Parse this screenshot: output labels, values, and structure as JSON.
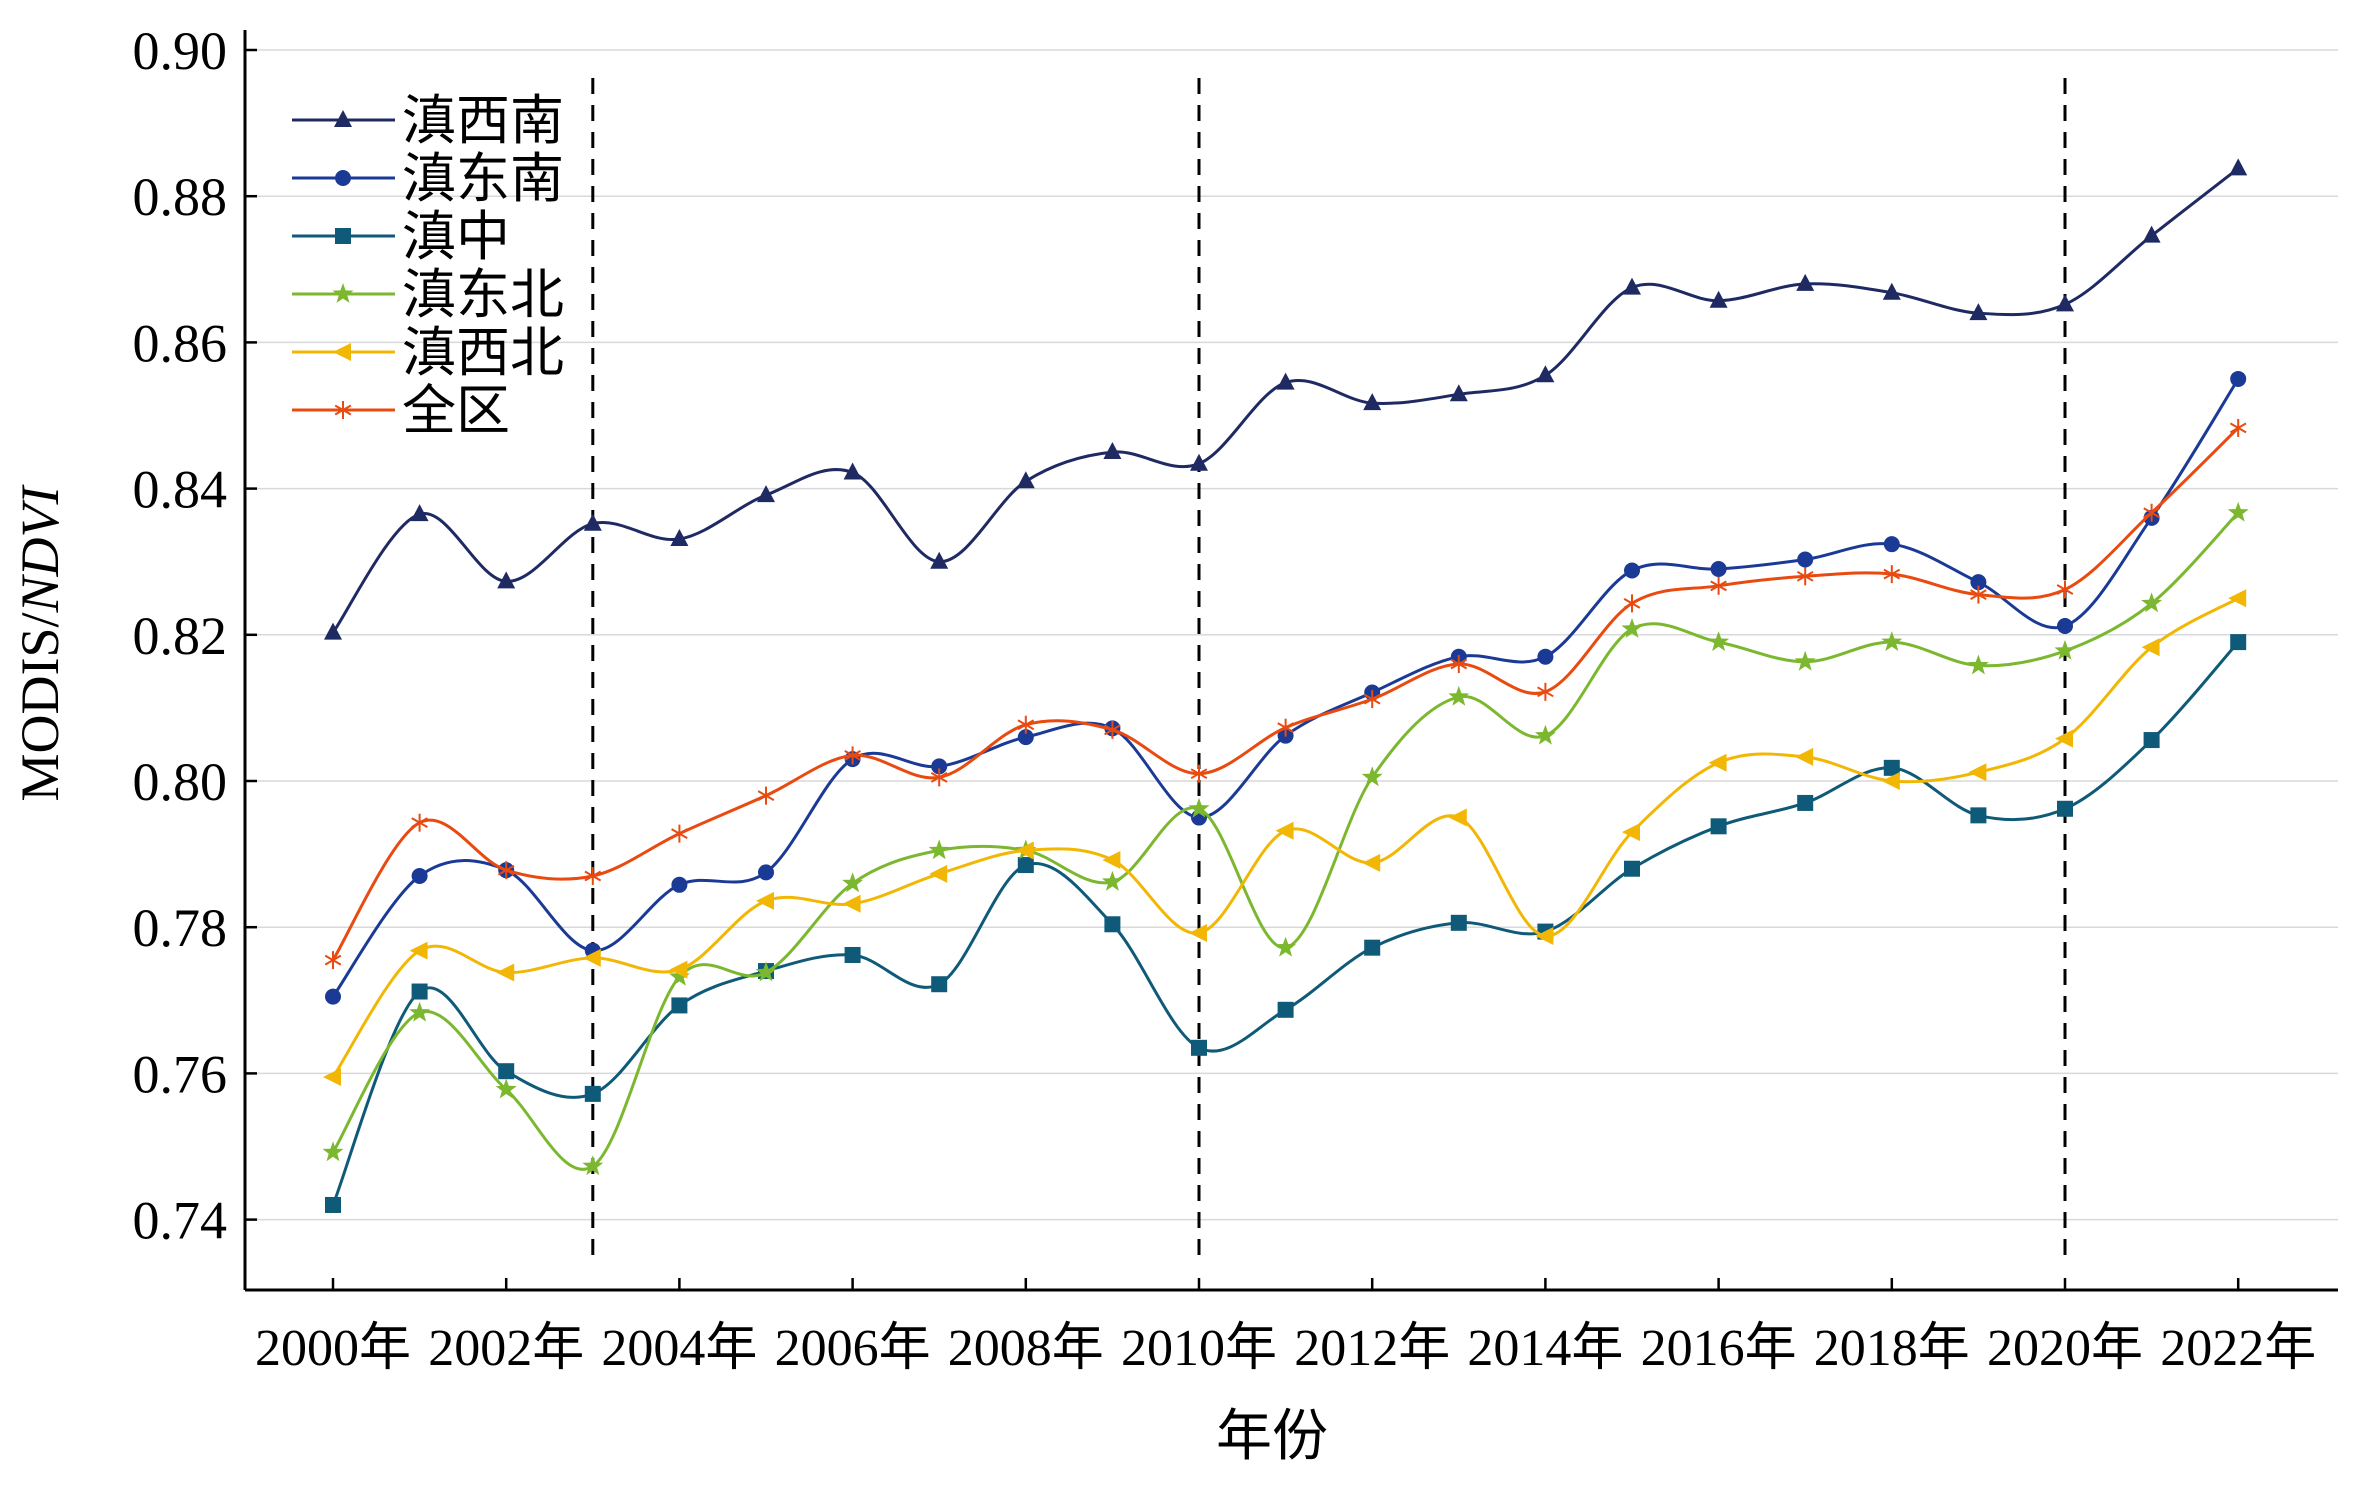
{
  "chart_data": {
    "type": "line",
    "title": "",
    "xlabel": "年份",
    "ylabel_prefix": "MODIS/",
    "ylabel_italic": "NDVI",
    "ylim": [
      0.73,
      0.9
    ],
    "yticks": [
      0.74,
      0.76,
      0.78,
      0.8,
      0.82,
      0.84,
      0.86,
      0.88,
      0.9
    ],
    "ytick_labels": [
      "0.74",
      "0.76",
      "0.78",
      "0.80",
      "0.82",
      "0.84",
      "0.86",
      "0.88",
      "0.90"
    ],
    "x": [
      2000,
      2001,
      2002,
      2003,
      2004,
      2005,
      2006,
      2007,
      2008,
      2009,
      2010,
      2011,
      2012,
      2013,
      2014,
      2015,
      2016,
      2017,
      2018,
      2019,
      2020,
      2021,
      2022
    ],
    "xticks": [
      2000,
      2002,
      2004,
      2006,
      2008,
      2010,
      2012,
      2014,
      2016,
      2018,
      2020,
      2022
    ],
    "xtick_labels": [
      "2000年",
      "2002年",
      "2004年",
      "2006年",
      "2008年",
      "2010年",
      "2012年",
      "2014年",
      "2016年",
      "2018年",
      "2020年",
      "2022年"
    ],
    "grid": "horizontal",
    "legend_position": "top-left",
    "vlines": [
      2003,
      2010,
      2020
    ],
    "series": [
      {
        "name": "滇西南",
        "color": "#1F2A63",
        "marker": "triangle",
        "values": [
          0.8203,
          0.8365,
          0.8273,
          0.8352,
          0.8331,
          0.8391,
          0.8422,
          0.83,
          0.841,
          0.845,
          0.8434,
          0.8545,
          0.8517,
          0.8529,
          0.8555,
          0.8675,
          0.8657,
          0.868,
          0.8668,
          0.864,
          0.8652,
          0.8746,
          0.8838
        ]
      },
      {
        "name": "滇东南",
        "color": "#1B3A96",
        "marker": "circle",
        "values": [
          0.7705,
          0.787,
          0.7878,
          0.7768,
          0.7858,
          0.7875,
          0.803,
          0.802,
          0.806,
          0.8072,
          0.795,
          0.8062,
          0.8121,
          0.817,
          0.817,
          0.8288,
          0.829,
          0.8303,
          0.8324,
          0.8272,
          0.8212,
          0.836,
          0.855
        ]
      },
      {
        "name": "滇中",
        "color": "#0F5A78",
        "marker": "square",
        "values": [
          0.742,
          0.7712,
          0.7603,
          0.7572,
          0.7693,
          0.774,
          0.7762,
          0.7722,
          0.7885,
          0.7804,
          0.7635,
          0.7687,
          0.7772,
          0.7806,
          0.7794,
          0.788,
          0.7938,
          0.797,
          0.8018,
          0.7953,
          0.7962,
          0.8056,
          0.819
        ]
      },
      {
        "name": "滇东北",
        "color": "#7CB82F",
        "marker": "star",
        "values": [
          0.7492,
          0.7683,
          0.7578,
          0.7473,
          0.7732,
          0.7738,
          0.786,
          0.7905,
          0.7905,
          0.7862,
          0.7962,
          0.7772,
          0.8005,
          0.8115,
          0.8062,
          0.8208,
          0.819,
          0.8163,
          0.819,
          0.8158,
          0.8178,
          0.8243,
          0.8367
        ]
      },
      {
        "name": "滇西北",
        "color": "#F2B705",
        "marker": "triangle-left",
        "values": [
          0.7595,
          0.7768,
          0.7738,
          0.7758,
          0.7742,
          0.7836,
          0.7832,
          0.7873,
          0.7905,
          0.7892,
          0.7792,
          0.7932,
          0.7888,
          0.795,
          0.7788,
          0.793,
          0.8025,
          0.8033,
          0.8,
          0.8012,
          0.8058,
          0.8183,
          0.825
        ]
      },
      {
        "name": "全区",
        "color": "#E84A10",
        "marker": "asterisk",
        "values": [
          0.7755,
          0.7943,
          0.7878,
          0.787,
          0.7928,
          0.798,
          0.8035,
          0.8005,
          0.8077,
          0.807,
          0.801,
          0.8073,
          0.8112,
          0.816,
          0.8122,
          0.8243,
          0.8267,
          0.828,
          0.8283,
          0.8255,
          0.8262,
          0.8367,
          0.8483
        ]
      }
    ]
  }
}
